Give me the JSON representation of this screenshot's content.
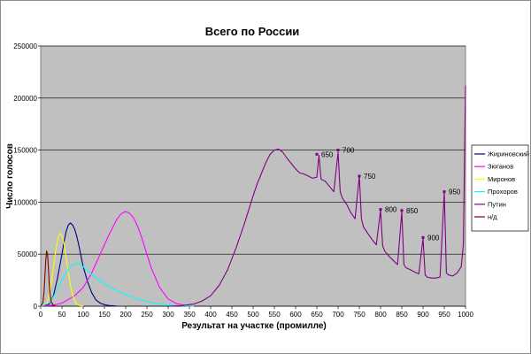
{
  "chart_data": {
    "type": "line",
    "title": "Всего по России",
    "xlabel": "Результат на участке (промилле)",
    "ylabel": "Число голосов",
    "xlim": [
      0,
      1000
    ],
    "ylim": [
      0,
      250000
    ],
    "x_ticks": [
      0,
      50,
      100,
      150,
      200,
      250,
      300,
      350,
      400,
      450,
      500,
      550,
      600,
      650,
      700,
      750,
      800,
      850,
      900,
      950,
      1000
    ],
    "y_ticks": [
      0,
      50000,
      100000,
      150000,
      200000,
      250000
    ],
    "grid": "horizontal",
    "legend_position": "right",
    "series": [
      {
        "name": "Жириновский",
        "color": "#000080",
        "x": [
          0,
          20,
          30,
          40,
          50,
          55,
          60,
          65,
          70,
          75,
          80,
          85,
          90,
          95,
          100,
          110,
          120,
          130,
          140,
          150,
          160,
          170,
          180
        ],
        "y": [
          0,
          2000,
          10000,
          28000,
          50000,
          62000,
          72000,
          78000,
          80000,
          78000,
          74000,
          67000,
          58000,
          48000,
          38000,
          24000,
          13000,
          6000,
          3000,
          1500,
          700,
          300,
          0
        ]
      },
      {
        "name": "Зюганов",
        "color": "#ff00ff",
        "x": [
          0,
          30,
          50,
          80,
          100,
          120,
          140,
          160,
          170,
          180,
          190,
          200,
          210,
          220,
          230,
          240,
          250,
          260,
          280,
          300,
          320,
          340,
          360
        ],
        "y": [
          0,
          1000,
          3000,
          10000,
          18000,
          32000,
          50000,
          68000,
          76000,
          84000,
          89000,
          91000,
          89000,
          84000,
          75000,
          63000,
          50000,
          37000,
          18000,
          7000,
          2500,
          800,
          0
        ]
      },
      {
        "name": "Миронов",
        "color": "#ffff00",
        "x": [
          0,
          15,
          20,
          25,
          30,
          35,
          40,
          45,
          50,
          55,
          60,
          65,
          70,
          75,
          80,
          85,
          90,
          100
        ],
        "y": [
          0,
          3000,
          10000,
          22000,
          38000,
          52000,
          64000,
          70000,
          68000,
          60000,
          46000,
          32000,
          20000,
          11000,
          5000,
          2000,
          800,
          0
        ]
      },
      {
        "name": "Прохоров",
        "color": "#00ffff",
        "x": [
          0,
          20,
          30,
          40,
          50,
          60,
          70,
          80,
          90,
          100,
          110,
          120,
          130,
          140,
          150,
          160,
          170,
          180,
          190,
          200,
          220,
          240,
          260,
          280,
          300,
          330,
          360
        ],
        "y": [
          0,
          3000,
          9000,
          17000,
          25000,
          32000,
          38000,
          41000,
          41000,
          38000,
          34000,
          30000,
          27000,
          24000,
          22000,
          19000,
          17000,
          15000,
          13000,
          11000,
          8000,
          5500,
          3500,
          2000,
          1000,
          300,
          0
        ]
      },
      {
        "name": "Путин",
        "color": "#800080",
        "x": [
          300,
          330,
          360,
          380,
          400,
          420,
          440,
          460,
          480,
          500,
          510,
          520,
          530,
          540,
          550,
          560,
          570,
          580,
          590,
          600,
          610,
          620,
          630,
          640,
          650,
          655,
          660,
          670,
          680,
          690,
          700,
          705,
          710,
          720,
          730,
          740,
          750,
          755,
          760,
          770,
          780,
          790,
          800,
          805,
          810,
          820,
          830,
          840,
          850,
          855,
          860,
          870,
          880,
          890,
          900,
          905,
          910,
          920,
          930,
          940,
          950,
          955,
          960,
          970,
          980,
          990,
          995,
          1000
        ],
        "y": [
          0,
          500,
          2000,
          5000,
          10000,
          20000,
          35000,
          56000,
          80000,
          106000,
          118000,
          128000,
          138000,
          146000,
          150000,
          151000,
          148000,
          142000,
          137000,
          132000,
          128000,
          127000,
          125000,
          123000,
          124000,
          145000,
          122000,
          120000,
          115000,
          110000,
          148000,
          110000,
          104000,
          98000,
          90000,
          84000,
          125000,
          84000,
          76000,
          70000,
          64000,
          59000,
          92000,
          58000,
          53000,
          48000,
          44000,
          40000,
          91000,
          40000,
          37000,
          35000,
          33000,
          31000,
          65000,
          30000,
          28000,
          27000,
          27000,
          28000,
          110000,
          32000,
          30000,
          29000,
          32000,
          38000,
          60000,
          212000
        ]
      },
      {
        "name": "н/д",
        "color": "#800000",
        "x": [
          0,
          5,
          8,
          10,
          12,
          14,
          16,
          18,
          20,
          22,
          25,
          30,
          35
        ],
        "y": [
          0,
          3000,
          14000,
          30000,
          45000,
          53000,
          50000,
          38000,
          22000,
          11000,
          4000,
          800,
          0
        ]
      }
    ],
    "annotations": [
      {
        "text": "650",
        "x": 650,
        "y": 146000
      },
      {
        "text": "700",
        "x": 700,
        "y": 150000
      },
      {
        "text": "750",
        "x": 750,
        "y": 125000
      },
      {
        "text": "800",
        "x": 800,
        "y": 93000
      },
      {
        "text": "850",
        "x": 850,
        "y": 92000
      },
      {
        "text": "900",
        "x": 900,
        "y": 66000
      },
      {
        "text": "950",
        "x": 950,
        "y": 110000
      }
    ]
  }
}
